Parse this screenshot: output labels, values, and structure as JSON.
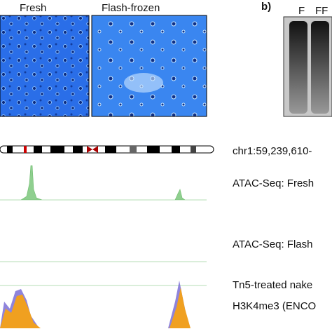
{
  "panel_a": {
    "labels": [
      "Fresh",
      "Flash-frozen"
    ]
  },
  "panel_b": {
    "letter": "b)",
    "lanes": [
      "F",
      "FF"
    ]
  },
  "tracks": {
    "locus": "chr1:59,239,610-",
    "names": [
      "ATAC-Seq: Fresh",
      "ATAC-Seq: Flash",
      "Tn5-treated nake",
      "H3K4me3 (ENCO"
    ]
  }
}
